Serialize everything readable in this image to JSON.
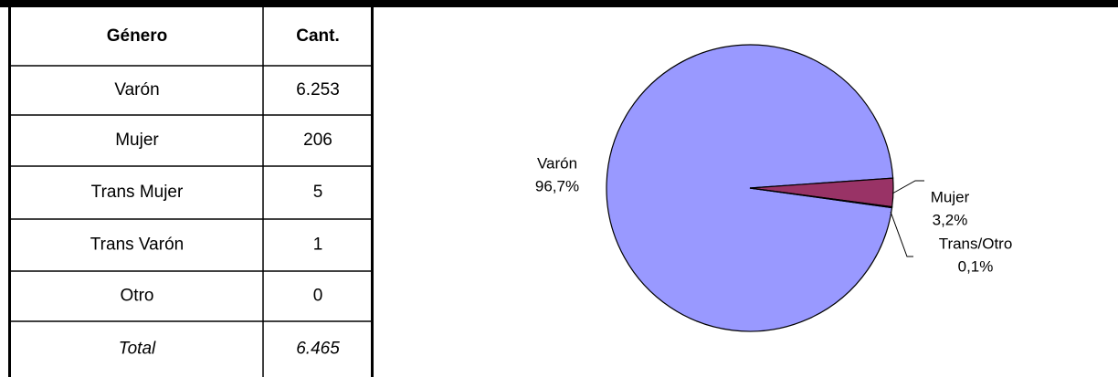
{
  "table": {
    "header": [
      "Género",
      "Cant."
    ],
    "rows": [
      [
        "Varón",
        "6.253"
      ],
      [
        "Mujer",
        "206"
      ],
      [
        "Trans Mujer",
        "5"
      ],
      [
        "Trans Varón",
        "1"
      ],
      [
        "Otro",
        "0"
      ]
    ],
    "total": [
      "Total",
      "6.465"
    ]
  },
  "chart_data": {
    "type": "pie",
    "categories": [
      "Varón",
      "Mujer",
      "Trans/Otro"
    ],
    "values": [
      96.7,
      3.2,
      0.1
    ],
    "value_labels": [
      "96,7%",
      "3,2%",
      "0,1%"
    ],
    "colors": [
      "#9999ff",
      "#993366",
      "#ffffcc"
    ]
  }
}
